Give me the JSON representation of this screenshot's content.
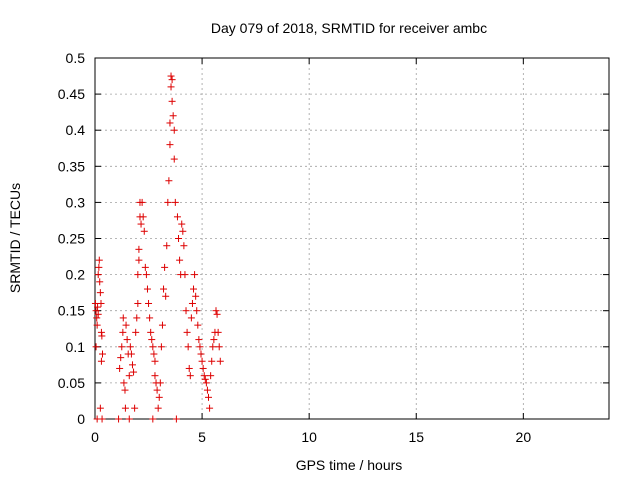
{
  "chart_data": {
    "type": "scatter",
    "title": "Day 079 of 2018, SRMTID for receiver ambc",
    "xlabel": "GPS time / hours",
    "ylabel": "SRMTID / TECUs",
    "xlim": [
      0,
      24
    ],
    "ylim": [
      0,
      0.5
    ],
    "x_ticks": [
      0,
      5,
      10,
      15,
      20
    ],
    "x_tick_labels": [
      "0",
      "5",
      "10",
      "15",
      "20"
    ],
    "y_ticks": [
      0,
      0.05,
      0.1,
      0.15,
      0.2,
      0.25,
      0.3,
      0.35,
      0.4,
      0.45,
      0.5
    ],
    "y_tick_labels": [
      "0",
      "0.05",
      "0.1",
      "0.15",
      "0.2",
      "0.25",
      "0.3",
      "0.35",
      "0.4",
      "0.45",
      "0.5"
    ],
    "grid": true,
    "marker": "plus",
    "color": "#dd0000",
    "series": [
      {
        "values": [
          [
            0.02,
            0.16
          ],
          [
            0.05,
            0.15
          ],
          [
            0.08,
            0.14
          ],
          [
            0.1,
            0.13
          ],
          [
            0.12,
            0.155
          ],
          [
            0.15,
            0.2
          ],
          [
            0.18,
            0.21
          ],
          [
            0.2,
            0.22
          ],
          [
            0.22,
            0.19
          ],
          [
            0.25,
            0.175
          ],
          [
            0.28,
            0.16
          ],
          [
            0.3,
            0.12
          ],
          [
            0.32,
            0.115
          ],
          [
            0.35,
            0.09
          ],
          [
            0.3,
            0.08
          ],
          [
            0.25,
            0.015
          ],
          [
            0.1,
            0.0
          ],
          [
            0.15,
            0.145
          ],
          [
            0.05,
            0.1
          ],
          [
            0.33,
            0.0
          ],
          [
            1.1,
            0.0
          ],
          [
            1.15,
            0.07
          ],
          [
            1.2,
            0.085
          ],
          [
            1.25,
            0.1
          ],
          [
            1.3,
            0.12
          ],
          [
            1.32,
            0.14
          ],
          [
            1.35,
            0.05
          ],
          [
            1.4,
            0.04
          ],
          [
            1.42,
            0.015
          ],
          [
            1.45,
            0.13
          ],
          [
            1.5,
            0.11
          ],
          [
            1.55,
            0.09
          ],
          [
            1.6,
            0.06
          ],
          [
            1.6,
            0.0
          ],
          [
            1.65,
            0.1
          ],
          [
            1.7,
            0.09
          ],
          [
            1.75,
            0.075
          ],
          [
            1.8,
            0.065
          ],
          [
            1.85,
            0.015
          ],
          [
            1.9,
            0.12
          ],
          [
            1.95,
            0.14
          ],
          [
            2.0,
            0.16
          ],
          [
            2.0,
            0.2
          ],
          [
            2.05,
            0.22
          ],
          [
            2.05,
            0.235
          ],
          [
            2.1,
            0.3
          ],
          [
            2.1,
            0.28
          ],
          [
            2.15,
            0.27
          ],
          [
            2.2,
            0.3
          ],
          [
            2.25,
            0.28
          ],
          [
            2.3,
            0.26
          ],
          [
            2.35,
            0.21
          ],
          [
            2.4,
            0.2
          ],
          [
            2.45,
            0.18
          ],
          [
            2.5,
            0.16
          ],
          [
            2.55,
            0.14
          ],
          [
            2.6,
            0.12
          ],
          [
            2.65,
            0.11
          ],
          [
            2.7,
            0.1
          ],
          [
            2.7,
            0.0
          ],
          [
            2.75,
            0.09
          ],
          [
            2.8,
            0.08
          ],
          [
            2.8,
            0.06
          ],
          [
            2.85,
            0.05
          ],
          [
            2.9,
            0.04
          ],
          [
            2.95,
            0.015
          ],
          [
            3.0,
            0.03
          ],
          [
            3.05,
            0.05
          ],
          [
            3.1,
            0.1
          ],
          [
            3.15,
            0.13
          ],
          [
            3.2,
            0.18
          ],
          [
            3.25,
            0.21
          ],
          [
            3.3,
            0.17
          ],
          [
            3.35,
            0.24
          ],
          [
            3.4,
            0.3
          ],
          [
            3.45,
            0.33
          ],
          [
            3.5,
            0.38
          ],
          [
            3.5,
            0.41
          ],
          [
            3.55,
            0.46
          ],
          [
            3.55,
            0.475
          ],
          [
            3.6,
            0.47
          ],
          [
            3.6,
            0.44
          ],
          [
            3.65,
            0.42
          ],
          [
            3.7,
            0.4
          ],
          [
            3.7,
            0.36
          ],
          [
            3.75,
            0.3
          ],
          [
            3.8,
            0.0
          ],
          [
            3.85,
            0.28
          ],
          [
            3.9,
            0.25
          ],
          [
            3.95,
            0.22
          ],
          [
            4.0,
            0.2
          ],
          [
            4.05,
            0.27
          ],
          [
            4.1,
            0.26
          ],
          [
            4.15,
            0.24
          ],
          [
            4.2,
            0.2
          ],
          [
            4.25,
            0.15
          ],
          [
            4.3,
            0.12
          ],
          [
            4.35,
            0.1
          ],
          [
            4.4,
            0.07
          ],
          [
            4.45,
            0.06
          ],
          [
            4.5,
            0.14
          ],
          [
            4.55,
            0.16
          ],
          [
            4.6,
            0.18
          ],
          [
            4.65,
            0.2
          ],
          [
            4.7,
            0.17
          ],
          [
            4.75,
            0.15
          ],
          [
            4.8,
            0.13
          ],
          [
            4.85,
            0.11
          ],
          [
            4.9,
            0.1
          ],
          [
            4.95,
            0.09
          ],
          [
            5.0,
            0.08
          ],
          [
            5.05,
            0.07
          ],
          [
            5.1,
            0.06
          ],
          [
            5.15,
            0.055
          ],
          [
            5.2,
            0.05
          ],
          [
            5.25,
            0.04
          ],
          [
            5.3,
            0.03
          ],
          [
            5.35,
            0.015
          ],
          [
            5.4,
            0.06
          ],
          [
            5.45,
            0.08
          ],
          [
            5.5,
            0.1
          ],
          [
            5.55,
            0.11
          ],
          [
            5.6,
            0.12
          ],
          [
            5.65,
            0.15
          ],
          [
            5.7,
            0.145
          ],
          [
            5.75,
            0.12
          ],
          [
            5.8,
            0.1
          ],
          [
            5.85,
            0.08
          ]
        ]
      }
    ]
  }
}
